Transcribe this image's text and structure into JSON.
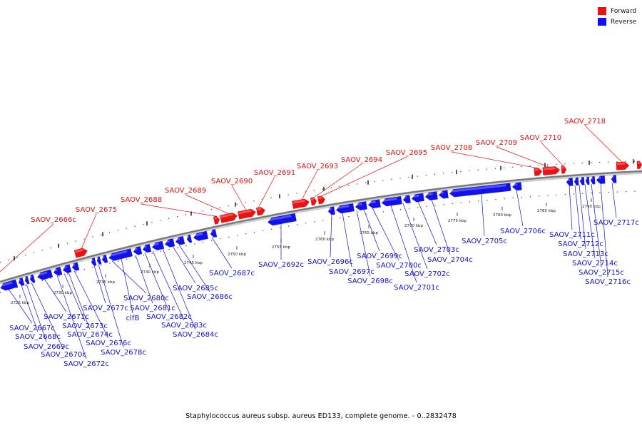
{
  "legend": {
    "forward_label": "Forward",
    "reverse_label": "Reverse",
    "forward_color": "#ee1111",
    "reverse_color": "#1111ee"
  },
  "caption": "Staphylococcus aureus subsp. aureus ED133, complete genome. - 0..2832478",
  "kbp_labels": [
    "2725 kbp",
    "2730 kbp",
    "2735 kbp",
    "2740 kbp",
    "2745 kbp",
    "2750 kbp",
    "2755 kbp",
    "2760 kbp",
    "2765 kbp",
    "2770 kbp",
    "2775 kbp",
    "2780 kbp",
    "2785 kbp",
    "2790 kbp"
  ],
  "forward_genes": [
    "SAOV_2666c",
    "SAOV_2675",
    "SAOV_2688",
    "SAOV_2689",
    "SAOV_2690",
    "SAOV_2691",
    "SAOV_2693",
    "SAOV_2694",
    "SAOV_2695",
    "SAOV_2708",
    "SAOV_2709",
    "SAOV_2710",
    "SAOV_2718"
  ],
  "reverse_genes": [
    "SAOV_2667c",
    "SAOV_2668c",
    "SAOV_2669c",
    "SAOV_2670c",
    "SAOV_2671c",
    "SAOV_2672c",
    "SAOV_2673c",
    "SAOV_2674c",
    "SAOV_2676c",
    "SAOV_2677c",
    "SAOV_2678c",
    "SAOV_2680c",
    "clfB",
    "SAOV_2681c",
    "SAOV_2682c",
    "SAOV_2683c",
    "SAOV_2684c",
    "SAOV_2685c",
    "SAOV_2686c",
    "SAOV_2687c",
    "SAOV_2692c",
    "SAOV_2696c",
    "SAOV_2697c",
    "SAOV_2698c",
    "SAOV_2699c",
    "SAOV_2700c",
    "SAOV_2701c",
    "SAOV_2702c",
    "SAOV_2703c",
    "SAOV_2704c",
    "SAOV_2705c",
    "SAOV_2706c",
    "SAOV_2711c",
    "SAOV_2712c",
    "SAOV_2713c",
    "SAOV_2714c",
    "SAOV_2715c",
    "SAOV_2716c",
    "SAOV_2717c"
  ]
}
